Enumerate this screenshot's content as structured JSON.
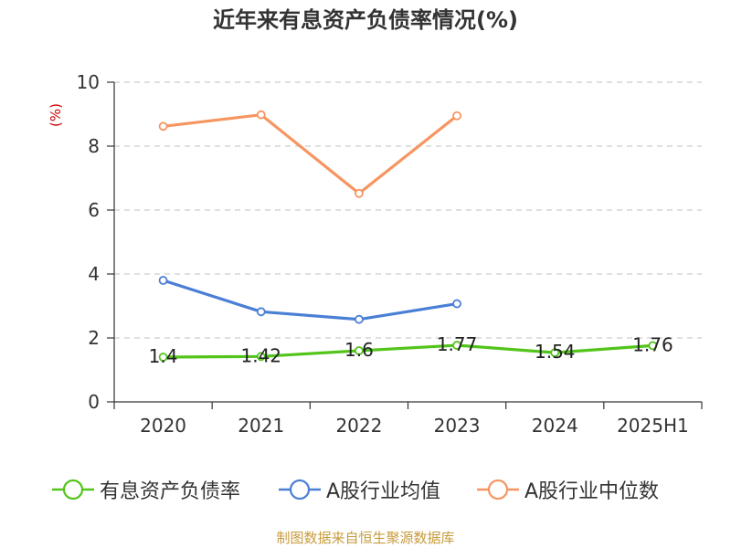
{
  "source_note": "制图数据来自恒生聚源数据库",
  "colors": {
    "grid": "#cccccc",
    "axis": "#333333",
    "unit": "#cc0000"
  },
  "chart_data": {
    "type": "line",
    "title": "近年来有息资产负债率情况(%)",
    "ylabel": "(%)",
    "xlabel": "",
    "categories": [
      "2020",
      "2021",
      "2022",
      "2023",
      "2024",
      "2025H1"
    ],
    "ylim": [
      0,
      10
    ],
    "yticks": [
      0,
      2,
      4,
      6,
      8,
      10
    ],
    "grid": true,
    "legend_position": "bottom",
    "series": [
      {
        "name": "有息资产负债率",
        "color": "#52c41a",
        "values": [
          1.4,
          1.42,
          1.6,
          1.77,
          1.54,
          1.76
        ],
        "labels": [
          "1.4",
          "1.42",
          "1.6",
          "1.77",
          "1.54",
          "1.76"
        ]
      },
      {
        "name": "A股行业均值",
        "color": "#4a7fd6",
        "values": [
          3.8,
          2.82,
          2.58,
          3.07,
          null,
          null
        ]
      },
      {
        "name": "A股行业中位数",
        "color": "#f79560",
        "values": [
          8.62,
          8.98,
          6.52,
          8.95,
          null,
          null
        ]
      }
    ]
  }
}
